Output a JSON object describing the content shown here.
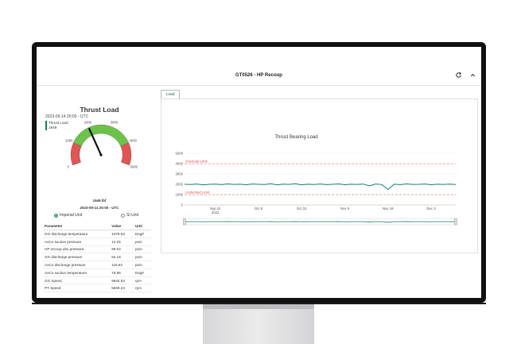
{
  "header": {
    "title": "GT0526 - HP Recoup"
  },
  "gauge": {
    "title": "Thrust Load",
    "value": 1949,
    "value_label": "1949 lbf",
    "timestamp": "2023-09-14 20:00 - UTC",
    "min": 0,
    "max": 5000,
    "tick_labels": [
      "0",
      "1000",
      "2000",
      "3000",
      "4000",
      "5000"
    ],
    "colors": {
      "red": "#e05555",
      "green": "#6cc24a",
      "needle": "#111111"
    }
  },
  "units": {
    "imperial": "Imperial Unit",
    "si": "SI Unit",
    "selected": "imperial"
  },
  "table": {
    "headers": [
      "Parameter",
      "Value",
      "Unit"
    ],
    "rows": [
      [
        "GG discharge temperature",
        "1578.63",
        "DegF"
      ],
      [
        "AxCo suction pressure",
        "14.25",
        "psiA"
      ],
      [
        "HP recoup abs pressure",
        "98.04",
        "psiA"
      ],
      [
        "GG discharge pressure",
        "94.16",
        "psiA"
      ],
      [
        "AxCo discharge pressure",
        "118.84",
        "psiA"
      ],
      [
        "AxCo suction temperature",
        "76.95",
        "DegF"
      ],
      [
        "GG Speed",
        "9842.93",
        "rpm"
      ],
      [
        "PT Speed",
        "5839.23",
        "rpm"
      ]
    ]
  },
  "tabs": [
    {
      "label": "Load",
      "active": true
    }
  ],
  "readout": {
    "timestamp": "2023-09-14 20:00 - UTC",
    "series": "Thrust Load",
    "value": "1949"
  },
  "chart_data": {
    "type": "line",
    "title": "Thrust Bearing Load",
    "yticks": [
      0,
      1000,
      2000,
      3000,
      4000,
      5000
    ],
    "ylim": [
      0,
      5000
    ],
    "xtick_labels": [
      "Sep 24\n2023",
      "Oct 8",
      "Oct 22",
      "Nov 5",
      "Nov 19",
      "Dec 3"
    ],
    "xtick_days": [
      10,
      24,
      38,
      52,
      66,
      80
    ],
    "xlim_days": [
      0,
      88
    ],
    "overload_limit": {
      "label": "Overload Limit",
      "value": 4000
    },
    "underload_limit": {
      "label": "Underload Limit",
      "value": 1000
    },
    "series": [
      {
        "name": "Thrust Load",
        "x_days": [
          0,
          2,
          4,
          6,
          8,
          10,
          12,
          14,
          16,
          18,
          20,
          22,
          24,
          26,
          28,
          30,
          32,
          34,
          36,
          38,
          40,
          42,
          44,
          46,
          48,
          50,
          52,
          54,
          56,
          58,
          60,
          62,
          64,
          66,
          68,
          70,
          72,
          74,
          76,
          78,
          80,
          82,
          84,
          86,
          88
        ],
        "values": [
          2010,
          1980,
          2030,
          1950,
          2000,
          2020,
          1970,
          2040,
          1990,
          2010,
          1960,
          2030,
          2000,
          1980,
          2050,
          1940,
          2020,
          1990,
          2060,
          1950,
          2010,
          1980,
          2030,
          1970,
          2000,
          2040,
          1960,
          2010,
          1990,
          2020,
          1850,
          2030,
          1980,
          1500,
          2010,
          1970,
          2040,
          1990,
          2000,
          2030,
          1960,
          2010,
          1990,
          2020,
          1980
        ]
      }
    ],
    "colors": {
      "line": "#1a7a6a",
      "limit": "#e05555"
    }
  }
}
